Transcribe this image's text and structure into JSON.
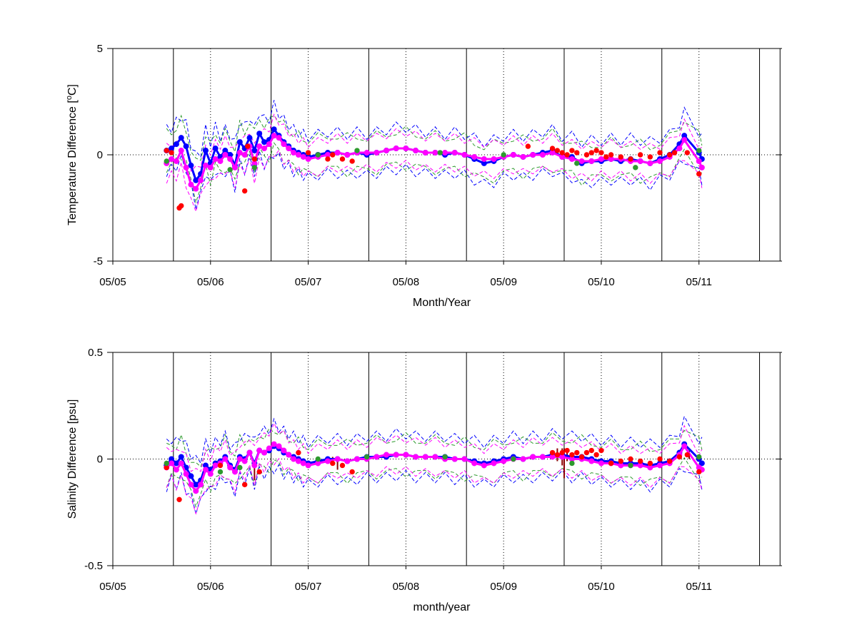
{
  "colors": {
    "blue": "#0000ff",
    "green": "#2e9a2e",
    "red": "#ff0000",
    "magenta": "#ff00ff",
    "darkred": "#8b0000",
    "axis": "#000000"
  },
  "chart_data": [
    {
      "type": "line",
      "ylabel_main": "Temperature Difference [",
      "ylabel_sup": "o",
      "ylabel_end": "C]",
      "xlabel": "Month/Year",
      "ylim": [
        -5,
        5
      ],
      "yticks": [
        "5",
        "0",
        "-5"
      ],
      "xticks": [
        "05/05",
        "05/06",
        "05/07",
        "05/08",
        "05/09",
        "05/10",
        "05/11"
      ],
      "x_unit": "years since 2005",
      "xlim": [
        2005.0,
        2011.85
      ],
      "solid_vlines": [
        2005.62,
        2006.62,
        2007.62,
        2008.62,
        2009.62,
        2010.62,
        2011.62,
        2011.83
      ],
      "dotted_vlines": [
        2005.0,
        2006.0,
        2007.0,
        2008.0,
        2009.0,
        2010.0,
        2011.0
      ],
      "zero_line": true,
      "series": [
        {
          "color": "blue",
          "role": "mean_markers",
          "x": [
            2005.55,
            2005.6,
            2005.65,
            2005.7,
            2005.75,
            2005.8,
            2005.85,
            2005.9,
            2005.95,
            2006.0,
            2006.05,
            2006.1,
            2006.15,
            2006.2,
            2006.25,
            2006.3,
            2006.35,
            2006.4,
            2006.45,
            2006.5,
            2006.55,
            2006.6,
            2006.65,
            2006.7,
            2006.75,
            2006.8,
            2006.85,
            2006.9,
            2006.95,
            2007.0,
            2007.1,
            2007.2,
            2007.3,
            2007.4,
            2007.5,
            2007.6,
            2007.7,
            2007.8,
            2007.9,
            2008.0,
            2008.1,
            2008.2,
            2008.3,
            2008.4,
            2008.5,
            2008.6,
            2008.7,
            2008.8,
            2008.9,
            2009.0,
            2009.1,
            2009.2,
            2009.3,
            2009.4,
            2009.5,
            2009.6,
            2009.7,
            2009.8,
            2009.9,
            2010.0,
            2010.1,
            2010.2,
            2010.3,
            2010.4,
            2010.5,
            2010.6,
            2010.7,
            2010.8,
            2010.85,
            2011.0,
            2011.03
          ],
          "y": [
            0.2,
            0.3,
            0.5,
            0.8,
            0.4,
            -0.5,
            -1.2,
            -0.9,
            0.2,
            -0.4,
            0.3,
            -0.1,
            0.2,
            0.0,
            -0.5,
            0.6,
            0.3,
            0.8,
            0.2,
            1.0,
            0.6,
            0.7,
            1.2,
            0.9,
            0.6,
            0.4,
            0.2,
            0.1,
            0.0,
            -0.1,
            0.0,
            0.1,
            0.1,
            0.0,
            0.1,
            0.0,
            0.1,
            0.2,
            0.3,
            0.3,
            0.2,
            0.1,
            0.1,
            0.0,
            0.1,
            0.0,
            -0.2,
            -0.4,
            -0.3,
            -0.1,
            0.0,
            -0.1,
            0.0,
            0.1,
            0.2,
            -0.1,
            -0.1,
            -0.4,
            -0.3,
            -0.3,
            -0.2,
            -0.3,
            -0.2,
            -0.3,
            -0.4,
            -0.2,
            0.0,
            0.5,
            0.9,
            0.1,
            -0.2
          ]
        },
        {
          "color": "magenta",
          "role": "mean_markers",
          "x": [
            2005.55,
            2005.6,
            2005.65,
            2005.7,
            2005.75,
            2005.8,
            2005.85,
            2005.9,
            2005.95,
            2006.0,
            2006.05,
            2006.1,
            2006.15,
            2006.2,
            2006.25,
            2006.3,
            2006.35,
            2006.4,
            2006.45,
            2006.5,
            2006.55,
            2006.6,
            2006.65,
            2006.7,
            2006.75,
            2006.8,
            2006.85,
            2006.9,
            2006.95,
            2007.0,
            2007.1,
            2007.2,
            2007.3,
            2007.4,
            2007.5,
            2007.6,
            2007.7,
            2007.8,
            2007.9,
            2008.0,
            2008.1,
            2008.2,
            2008.3,
            2008.4,
            2008.5,
            2008.6,
            2008.7,
            2008.8,
            2008.9,
            2009.0,
            2009.1,
            2009.2,
            2009.3,
            2009.4,
            2009.5,
            2009.6,
            2009.7,
            2009.8,
            2009.9,
            2010.0,
            2010.1,
            2010.2,
            2010.3,
            2010.4,
            2010.5,
            2010.6,
            2010.7,
            2010.8,
            2010.85,
            2011.0,
            2011.03
          ],
          "y": [
            -0.4,
            -0.2,
            -0.3,
            0.2,
            -0.6,
            -1.4,
            -1.6,
            -1.2,
            -0.5,
            -0.6,
            -0.2,
            -0.3,
            0.0,
            -0.2,
            -0.6,
            0.1,
            0.0,
            0.4,
            -0.4,
            0.4,
            0.3,
            0.5,
            0.9,
            0.8,
            0.5,
            0.3,
            0.1,
            0.0,
            -0.1,
            -0.2,
            -0.1,
            0.0,
            0.1,
            0.0,
            0.1,
            0.1,
            0.1,
            0.2,
            0.3,
            0.3,
            0.2,
            0.1,
            0.1,
            0.1,
            0.1,
            0.0,
            -0.1,
            -0.2,
            -0.2,
            -0.1,
            0.0,
            -0.1,
            0.0,
            0.0,
            0.1,
            -0.1,
            -0.2,
            -0.3,
            -0.3,
            -0.2,
            -0.2,
            -0.2,
            -0.3,
            -0.3,
            -0.4,
            -0.3,
            -0.1,
            0.3,
            0.7,
            -0.3,
            -0.6
          ]
        },
        {
          "color": "red",
          "role": "points",
          "x": [
            2005.55,
            2005.6,
            2005.68,
            2005.7,
            2006.35,
            2006.38,
            2006.45,
            2007.0,
            2007.2,
            2007.25,
            2007.35,
            2007.45,
            2009.25,
            2009.5,
            2009.55,
            2009.6,
            2009.65,
            2009.7,
            2009.75,
            2009.85,
            2009.9,
            2009.95,
            2010.0,
            2010.05,
            2010.1,
            2010.2,
            2010.3,
            2010.4,
            2010.5,
            2010.6,
            2010.7,
            2010.75,
            2010.88,
            2011.0
          ],
          "y": [
            0.2,
            0.1,
            -2.5,
            -2.4,
            -1.7,
            0.4,
            -0.2,
            0.1,
            -0.2,
            0.0,
            -0.2,
            -0.3,
            0.4,
            0.3,
            0.2,
            0.1,
            0.0,
            0.2,
            0.1,
            0.0,
            0.1,
            0.2,
            0.1,
            -0.1,
            0.0,
            -0.1,
            -0.2,
            0.0,
            -0.1,
            0.1,
            0.0,
            0.1,
            0.1,
            -0.9
          ]
        },
        {
          "color": "green",
          "role": "points",
          "x": [
            2005.55,
            2006.2,
            2006.45,
            2007.1,
            2007.5,
            2008.35,
            2009.0,
            2009.75,
            2010.35,
            2011.0
          ],
          "y": [
            -0.3,
            -0.7,
            -0.6,
            0.0,
            0.2,
            0.1,
            0.0,
            -0.4,
            -0.6,
            0.2
          ]
        }
      ]
    },
    {
      "type": "line",
      "ylabel": "Salinity Difference [psu]",
      "xlabel": "month/year",
      "ylim": [
        -0.5,
        0.5
      ],
      "yticks": [
        "0.5",
        "0",
        "-0.5"
      ],
      "xticks": [
        "05/05",
        "05/06",
        "05/07",
        "05/08",
        "05/09",
        "05/10",
        "05/11"
      ],
      "x_unit": "years since 2005",
      "xlim": [
        2005.0,
        2011.85
      ],
      "solid_vlines": [
        2005.62,
        2006.62,
        2007.62,
        2008.62,
        2009.62,
        2010.62,
        2011.62,
        2011.83
      ],
      "dotted_vlines": [
        2005.0,
        2006.0,
        2007.0,
        2008.0,
        2009.0,
        2010.0,
        2011.0
      ],
      "zero_line": true,
      "series": [
        {
          "color": "blue",
          "role": "mean_markers",
          "x": [
            2005.55,
            2005.6,
            2005.65,
            2005.7,
            2005.75,
            2005.8,
            2005.85,
            2005.9,
            2005.95,
            2006.0,
            2006.05,
            2006.1,
            2006.15,
            2006.2,
            2006.25,
            2006.3,
            2006.35,
            2006.4,
            2006.45,
            2006.5,
            2006.55,
            2006.6,
            2006.65,
            2006.7,
            2006.75,
            2006.8,
            2006.85,
            2006.9,
            2006.95,
            2007.0,
            2007.1,
            2007.2,
            2007.3,
            2007.4,
            2007.5,
            2007.6,
            2007.7,
            2007.8,
            2007.9,
            2008.0,
            2008.1,
            2008.2,
            2008.3,
            2008.4,
            2008.5,
            2008.6,
            2008.7,
            2008.8,
            2008.9,
            2009.0,
            2009.1,
            2009.2,
            2009.3,
            2009.4,
            2009.5,
            2009.6,
            2009.7,
            2009.8,
            2009.9,
            2010.0,
            2010.1,
            2010.2,
            2010.3,
            2010.4,
            2010.5,
            2010.6,
            2010.7,
            2010.8,
            2010.85,
            2011.0,
            2011.03
          ],
          "y": [
            -0.03,
            0.0,
            -0.02,
            0.01,
            -0.04,
            -0.08,
            -0.12,
            -0.1,
            -0.03,
            -0.05,
            -0.02,
            -0.01,
            0.01,
            -0.03,
            -0.05,
            0.01,
            0.0,
            0.03,
            -0.02,
            0.04,
            0.03,
            0.04,
            0.06,
            0.05,
            0.03,
            0.02,
            0.01,
            0.0,
            -0.01,
            -0.02,
            -0.01,
            0.0,
            0.0,
            -0.01,
            0.0,
            0.01,
            0.01,
            0.01,
            0.02,
            0.02,
            0.01,
            0.01,
            0.01,
            0.01,
            0.0,
            0.0,
            -0.01,
            -0.02,
            -0.01,
            0.0,
            0.01,
            0.0,
            0.01,
            0.01,
            0.02,
            0.02,
            0.01,
            0.01,
            0.0,
            -0.01,
            -0.01,
            -0.02,
            -0.02,
            -0.02,
            -0.03,
            -0.02,
            -0.01,
            0.03,
            0.07,
            0.0,
            -0.02
          ]
        },
        {
          "color": "magenta",
          "role": "mean_markers",
          "x": [
            2005.55,
            2005.6,
            2005.65,
            2005.7,
            2005.75,
            2005.8,
            2005.85,
            2005.9,
            2005.95,
            2006.0,
            2006.05,
            2006.1,
            2006.15,
            2006.2,
            2006.25,
            2006.3,
            2006.35,
            2006.4,
            2006.45,
            2006.5,
            2006.55,
            2006.6,
            2006.65,
            2006.7,
            2006.75,
            2006.8,
            2006.85,
            2006.9,
            2006.95,
            2007.0,
            2007.1,
            2007.2,
            2007.3,
            2007.4,
            2007.5,
            2007.6,
            2007.7,
            2007.8,
            2007.9,
            2008.0,
            2008.1,
            2008.2,
            2008.3,
            2008.4,
            2008.5,
            2008.6,
            2008.7,
            2008.8,
            2008.9,
            2009.0,
            2009.1,
            2009.2,
            2009.3,
            2009.4,
            2009.5,
            2009.6,
            2009.7,
            2009.8,
            2009.9,
            2010.0,
            2010.1,
            2010.2,
            2010.3,
            2010.4,
            2010.5,
            2010.6,
            2010.7,
            2010.8,
            2010.85,
            2011.0,
            2011.03
          ],
          "y": [
            -0.04,
            -0.02,
            -0.05,
            -0.02,
            -0.07,
            -0.12,
            -0.15,
            -0.12,
            -0.05,
            -0.07,
            -0.03,
            -0.02,
            0.0,
            -0.04,
            -0.06,
            0.0,
            -0.01,
            0.03,
            -0.03,
            0.04,
            0.03,
            0.05,
            0.07,
            0.06,
            0.04,
            0.02,
            0.0,
            -0.01,
            -0.02,
            -0.03,
            -0.02,
            -0.01,
            0.0,
            -0.01,
            0.0,
            0.0,
            0.01,
            0.02,
            0.02,
            0.02,
            0.01,
            0.01,
            0.01,
            0.0,
            0.0,
            0.0,
            -0.02,
            -0.03,
            -0.02,
            -0.01,
            0.0,
            0.0,
            0.01,
            0.01,
            0.01,
            0.01,
            0.0,
            0.0,
            -0.01,
            -0.02,
            -0.02,
            -0.03,
            -0.03,
            -0.03,
            -0.04,
            -0.03,
            -0.02,
            0.02,
            0.06,
            -0.04,
            -0.05
          ]
        },
        {
          "color": "red",
          "role": "points",
          "x": [
            2005.55,
            2005.68,
            2006.1,
            2006.35,
            2006.5,
            2006.9,
            2007.25,
            2007.35,
            2007.45,
            2009.5,
            2009.55,
            2009.6,
            2009.65,
            2009.7,
            2009.75,
            2009.8,
            2009.85,
            2009.9,
            2009.95,
            2010.0,
            2010.1,
            2010.2,
            2010.3,
            2010.4,
            2010.5,
            2010.6,
            2010.7,
            2010.8,
            2010.88,
            2011.0
          ],
          "y": [
            -0.04,
            -0.19,
            -0.03,
            -0.12,
            -0.06,
            0.03,
            -0.02,
            -0.03,
            -0.06,
            0.03,
            0.02,
            0.03,
            0.04,
            0.02,
            0.03,
            0.01,
            0.03,
            0.04,
            0.02,
            0.04,
            -0.02,
            -0.01,
            0.0,
            -0.01,
            -0.02,
            0.0,
            -0.01,
            0.01,
            0.02,
            -0.06
          ]
        },
        {
          "color": "green",
          "role": "points",
          "x": [
            2005.55,
            2006.1,
            2006.3,
            2007.1,
            2007.6,
            2008.4,
            2009.1,
            2009.7,
            2010.3,
            2011.0
          ],
          "y": [
            -0.02,
            -0.06,
            -0.04,
            0.0,
            0.01,
            0.01,
            0.0,
            -0.02,
            -0.03,
            0.01
          ]
        }
      ],
      "error_bars": {
        "color": "darkred",
        "x": [
          2006.45,
          2007.25,
          2007.3,
          2009.55,
          2009.6,
          2009.62,
          2009.65,
          2009.7,
          2010.9
        ],
        "y": [
          -0.07,
          -0.01,
          -0.02,
          0.02,
          0.01,
          -0.02,
          0.02,
          0.01,
          0.02
        ],
        "half": [
          0.03,
          0.02,
          0.03,
          0.03,
          0.04,
          0.07,
          0.03,
          0.02,
          0.02
        ]
      }
    }
  ]
}
